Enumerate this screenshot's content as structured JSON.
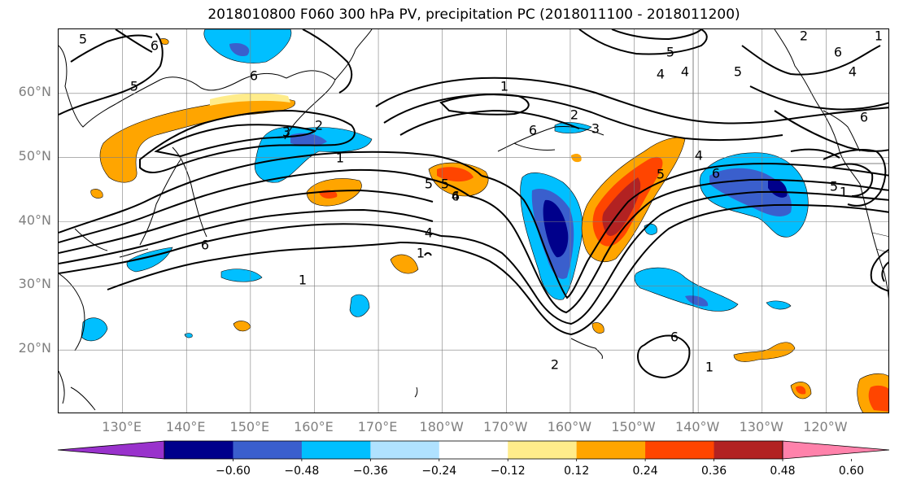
{
  "title": "2018010800 F060 300 hPa PV, precipitation PC (2018011100 - 2018011200)",
  "lat_labels": [
    "60°N",
    "50°N",
    "40°N",
    "30°N",
    "20°N"
  ],
  "lon_labels": [
    "130°E",
    "140°E",
    "150°E",
    "160°E",
    "170°E",
    "180°W",
    "170°W",
    "160°W",
    "150°W",
    "140°W",
    "130°W",
    "120°W"
  ],
  "colorbar": {
    "ticks": [
      "−0.60",
      "−0.48",
      "−0.36",
      "−0.24",
      "−0.12",
      "0.12",
      "0.24",
      "0.36",
      "0.48",
      "0.60"
    ],
    "colors": [
      "#9932cc",
      "#00008b",
      "#3a5fcd",
      "#00bfff",
      "#b0e2ff",
      "#ffffff",
      "#ffec8b",
      "#ffa500",
      "#ff4500",
      "#b22222",
      "#ff82ab"
    ]
  },
  "contour_labels": [
    "5",
    "6",
    "5",
    "4",
    "2",
    "3",
    "6",
    "1",
    "2",
    "3",
    "6",
    "5",
    "4",
    "6",
    "1",
    "5",
    "6",
    "4",
    "1",
    "1",
    "6",
    "5",
    "6",
    "4",
    "2",
    "1",
    "6",
    "2",
    "5",
    "4",
    "1",
    "1",
    "5",
    "4",
    "6",
    "5"
  ],
  "chart_data": {
    "type": "heatmap",
    "title": "2018010800 F060 300 hPa PV, precipitation PC (2018011100 - 2018011200)",
    "projection": "plate carree, central longitude 180",
    "extent": {
      "lon_min": 120,
      "lon_max": 250,
      "lat_min": 10,
      "lat_max": 70
    },
    "fields": [
      {
        "name": "300 hPa PV",
        "style": "black contours",
        "levels": [
          1,
          2,
          3,
          4,
          5,
          6
        ]
      },
      {
        "name": "precipitation PC",
        "style": "filled contours",
        "levels": [
          -0.6,
          -0.48,
          -0.36,
          -0.24,
          -0.12,
          0.12,
          0.24,
          0.36,
          0.48,
          0.6
        ]
      }
    ],
    "grid": true
  }
}
